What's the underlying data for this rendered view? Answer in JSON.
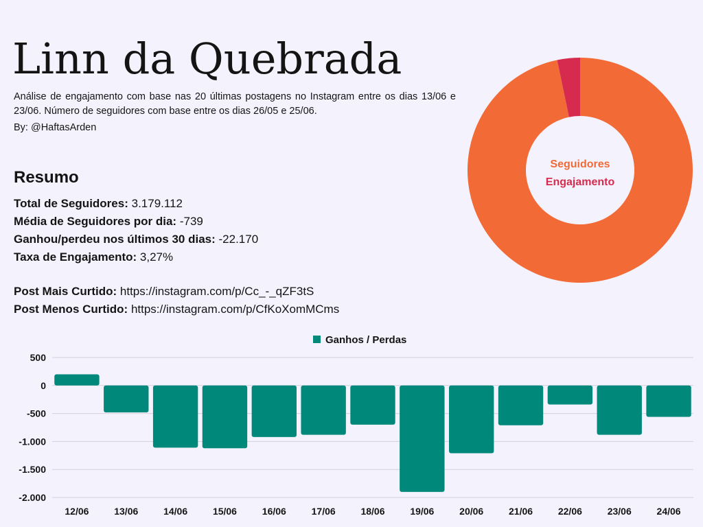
{
  "header": {
    "title": "Linn da Quebrada",
    "subtitle": "Análise de engajamento com base nas 20 últimas postagens no Instagram entre os dias 13/06 e 23/06. Número de seguidores com base entre os dias 26/05 e 25/06.",
    "author": "By: @HaftasArden"
  },
  "summary": {
    "heading": "Resumo",
    "total_followers_label": "Total de Seguidores:",
    "total_followers_value": "3.179.112",
    "avg_followers_label": "Média de Seguidores por dia:",
    "avg_followers_value": "-739",
    "gain_loss_label": "Ganhou/perdeu nos últimos 30 dias:",
    "gain_loss_value": "-22.170",
    "engagement_rate_label": "Taxa de Engajamento:",
    "engagement_rate_value": "3,27%",
    "most_liked_label": "Post Mais Curtido:",
    "most_liked_value": "https://instagram.com/p/Cc_-_qZF3tS",
    "least_liked_label": "Post Menos Curtido:",
    "least_liked_value": "https://instagram.com/p/CfKoXomMCms"
  },
  "chart_data": [
    {
      "type": "pie",
      "donut": true,
      "labels": [
        "Seguidores",
        "Engajamento"
      ],
      "values": [
        96.73,
        3.27
      ],
      "colors": [
        "#f26a36",
        "#d62b4f"
      ]
    },
    {
      "type": "bar",
      "categories": [
        "12/06",
        "13/06",
        "14/06",
        "15/06",
        "16/06",
        "17/06",
        "18/06",
        "19/06",
        "20/06",
        "21/06",
        "22/06",
        "23/06",
        "24/06"
      ],
      "series": [
        {
          "name": "Ganhos / Perdas",
          "values": [
            200,
            -480,
            -1110,
            -1120,
            -920,
            -880,
            -700,
            -1900,
            -1210,
            -710,
            -340,
            -880,
            -560
          ],
          "color": "#00897b"
        }
      ],
      "ylim": [
        -2000,
        500
      ],
      "yticks": [
        500,
        0,
        -500,
        -1000,
        -1500,
        -2000
      ],
      "ytick_labels": [
        "500",
        "0",
        "-500",
        "-1.000",
        "-1.500",
        "-2.000"
      ],
      "grid": true,
      "legend_position": "top-center"
    }
  ]
}
